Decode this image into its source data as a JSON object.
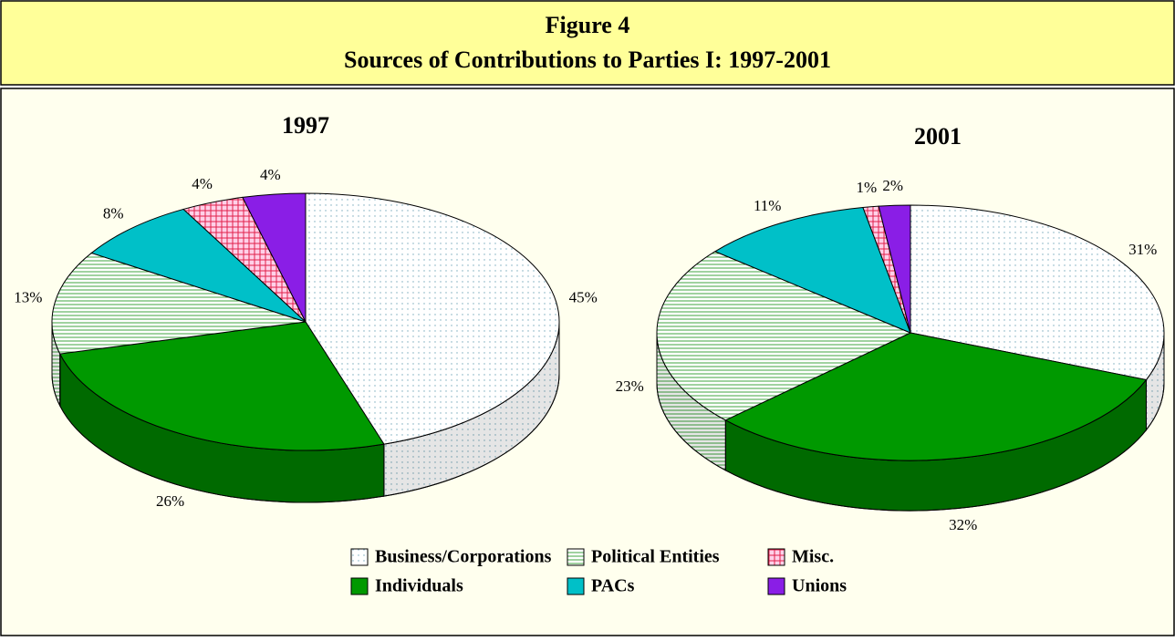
{
  "figure": {
    "label": "Figure 4",
    "title": "Sources of Contributions to Parties I: 1997-2001"
  },
  "legend": {
    "labels": [
      "Business/Corporations",
      "Individuals",
      "Political Entities",
      "PACs",
      "Misc.",
      "Unions"
    ],
    "colors": [
      "#ffffff",
      "#009900",
      "#ffffff",
      "#00c0c8",
      "#ffb0d8",
      "#8a1ee6"
    ],
    "patterns": [
      "dots",
      "none",
      "hlines",
      "none",
      "grid",
      "none"
    ]
  },
  "chart_data": [
    {
      "type": "pie",
      "title": "1997",
      "values": [
        45,
        26,
        13,
        8,
        4,
        4
      ],
      "value_labels": [
        "45%",
        "26%",
        "13%",
        "8%",
        "4%",
        "4%"
      ]
    },
    {
      "type": "pie",
      "title": "2001",
      "values": [
        31,
        32,
        23,
        11,
        1,
        2
      ],
      "value_labels": [
        "31%",
        "32%",
        "23%",
        "11%",
        "1%",
        "2%"
      ]
    }
  ]
}
